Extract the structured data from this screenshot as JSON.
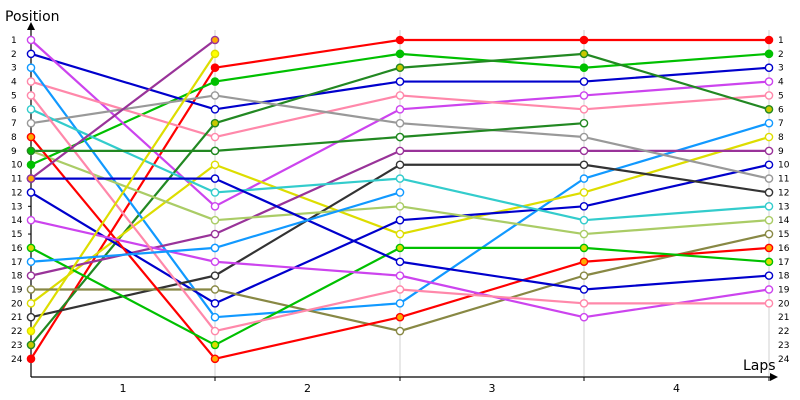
{
  "chart_data": {
    "type": "line",
    "ylabel": "Position",
    "xlabel": "Laps",
    "x": [
      0,
      1,
      2,
      3,
      4
    ],
    "x_tick_labels": [
      "1",
      "2",
      "3",
      "4"
    ],
    "ylim": [
      1,
      24
    ],
    "y_inverted": true,
    "grid": "vertical",
    "series": [
      {
        "color": "#ff0000",
        "values": [
          24,
          3,
          1,
          1,
          1
        ],
        "marker_color": "#ff0000"
      },
      {
        "color": "#00c000",
        "values": [
          10,
          4,
          2,
          3,
          2
        ],
        "marker_color": "#00c000"
      },
      {
        "color": "#0000cc",
        "values": [
          2,
          6,
          4,
          4,
          3
        ],
        "marker_color": "#ffffff"
      },
      {
        "color": "#cc44ee",
        "values": [
          1,
          13,
          6,
          5,
          4
        ],
        "marker_color": "#ffffff"
      },
      {
        "color": "#ff88aa",
        "values": [
          4,
          8,
          5,
          6,
          5
        ],
        "marker_color": "#ffffff"
      },
      {
        "color": "#228822",
        "values": [
          23,
          7,
          3,
          2,
          6
        ],
        "marker_color": "#c8c800"
      },
      {
        "color": "#1199ff",
        "values": [
          3,
          21,
          20,
          11,
          7
        ],
        "marker_color": "#ffffff"
      },
      {
        "color": "#dddd00",
        "values": [
          20,
          10,
          15,
          12,
          8
        ],
        "marker_color": "#ffffff"
      },
      {
        "color": "#993399",
        "values": [
          18,
          15,
          9,
          9,
          9
        ],
        "marker_color": "#ffffff"
      },
      {
        "color": "#0000cc",
        "values": [
          12,
          20,
          14,
          13,
          10
        ],
        "marker_color": "#ffffff"
      },
      {
        "color": "#999999",
        "values": [
          7,
          5,
          7,
          8,
          11
        ],
        "marker_color": "#ffffff"
      },
      {
        "color": "#333333",
        "values": [
          21,
          18,
          10,
          10,
          12
        ],
        "marker_color": "#ffffff"
      },
      {
        "color": "#33cccc",
        "values": [
          6,
          12,
          11,
          14,
          13
        ],
        "marker_color": "#ffffff"
      },
      {
        "color": "#aacc66",
        "values": [
          9,
          14,
          13,
          15,
          14
        ],
        "marker_color": "#ffffff"
      },
      {
        "color": "#888844",
        "values": [
          19,
          19,
          22,
          18,
          15
        ],
        "marker_color": "#ffffff"
      },
      {
        "color": "#ff0000",
        "values": [
          8,
          24,
          21,
          17,
          16
        ],
        "marker_color": "#ffaa00"
      },
      {
        "color": "#00c000",
        "values": [
          16,
          23,
          16,
          16,
          17
        ],
        "marker_color": "#dddd00"
      },
      {
        "color": "#0000cc",
        "values": [
          11,
          11,
          17,
          19,
          18
        ],
        "marker_color": "#ffffff"
      },
      {
        "color": "#cc44ee",
        "values": [
          14,
          17,
          18,
          21,
          19
        ],
        "marker_color": "#ffffff"
      },
      {
        "color": "#ff88aa",
        "values": [
          5,
          22,
          19,
          20,
          20
        ],
        "marker_color": "#ffffff"
      }
    ]
  },
  "extra_segments": [
    {
      "color": "#993399",
      "from": [
        0,
        11
      ],
      "to": [
        1,
        1
      ],
      "marker_color": "#ffaa00"
    },
    {
      "color": "#dddd00",
      "from": [
        0,
        22
      ],
      "to": [
        1,
        2
      ],
      "marker_color": "#ffff00"
    },
    {
      "color": "#228822",
      "from": [
        0,
        9
      ],
      "to": [
        1,
        9
      ],
      "marker_color": "#00c000"
    },
    {
      "color": "#1199ff",
      "from": [
        0,
        17
      ],
      "to": [
        1,
        16
      ],
      "marker_color": "#ffffff"
    },
    {
      "color": "#228822",
      "from": [
        1,
        9
      ],
      "to": [
        2,
        8
      ],
      "marker_color": "#ffffff"
    },
    {
      "color": "#228822",
      "from": [
        2,
        8
      ],
      "to": [
        3,
        7
      ],
      "marker_color": "#ffffff"
    },
    {
      "color": "#1199ff",
      "from": [
        1,
        16
      ],
      "to": [
        2,
        12
      ],
      "marker_color": "#ffffff"
    }
  ]
}
